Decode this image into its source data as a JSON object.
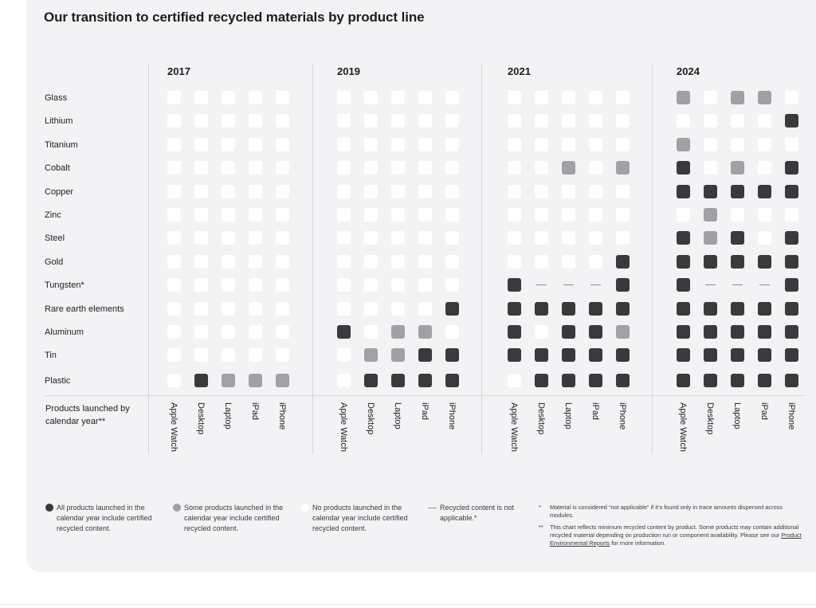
{
  "chart_data": {
    "type": "heatmap",
    "title": "Our transition to certified recycled materials by product line",
    "years": [
      "2017",
      "2019",
      "2021",
      "2024"
    ],
    "products": [
      "Apple Watch",
      "Desktop",
      "Laptop",
      "iPad",
      "iPhone"
    ],
    "materials": [
      "Glass",
      "Lithium",
      "Titanium",
      "Cobalt",
      "Copper",
      "Zinc",
      "Steel",
      "Gold",
      "Tungsten*",
      "Rare earth elements",
      "Aluminum",
      "Tin",
      "Plastic"
    ],
    "x_axis_label": "Products launched by calendar year**",
    "legend_key": {
      "A": "all",
      "S": "some",
      "N": "none",
      "-": "not applicable"
    },
    "grid": {
      "2017": [
        "NNNNN",
        "NNNNN",
        "NNNNN",
        "NNNNN",
        "NNNNN",
        "NNNNN",
        "NNNNN",
        "NNNNN",
        "NNNNN",
        "NNNNN",
        "NNNNN",
        "NNNNN",
        "NASSS"
      ],
      "2019": [
        "NNNNN",
        "NNNNN",
        "NNNNN",
        "NNNNN",
        "NNNNN",
        "NNNNN",
        "NNNNN",
        "NNNNN",
        "NNNNN",
        "NNNNA",
        "ANSSN",
        "NSSAA",
        "NAAAA"
      ],
      "2021": [
        "NNNNN",
        "NNNNN",
        "NNNNN",
        "NNSNS",
        "NNNNN",
        "NNNNN",
        "NNNNN",
        "NNNNA",
        "A---A",
        "AAAAA",
        "ANAAS",
        "AAAAA",
        "NAAAA"
      ],
      "2024": [
        "SNSSN",
        "NNNNA",
        "SNNNN",
        "ANSNA",
        "AAAAA",
        "NSNNN",
        "ASANA",
        "AAAAA",
        "A---A",
        "AAAAA",
        "AAAAA",
        "AAAAA",
        "AAAAA"
      ]
    }
  },
  "legend": {
    "all": "All products launched in the calendar year include certified recycled content.",
    "some": "Some products launched in the calendar year include certified recycled content.",
    "none": "No products launched in the calendar year include certified recycled content.",
    "na": "Recycled content is not applicable.*"
  },
  "footnotes": {
    "star_mark": "*",
    "star_text": "Material is considered “not applicable” if it’s found only in trace amounts dispersed across modules.",
    "dstar_mark": "**",
    "dstar_text_before": "This chart reflects minimum recycled content by product. Some products may contain additional recycled material depending on production run or component availability. Please see our ",
    "dstar_link": "Product Environmental Reports",
    "dstar_text_after": " for more information."
  },
  "colors": {
    "all": "#3a3a3c",
    "some": "#a1a1a4",
    "none": "#ffffff",
    "background": "#f3f3f5"
  }
}
